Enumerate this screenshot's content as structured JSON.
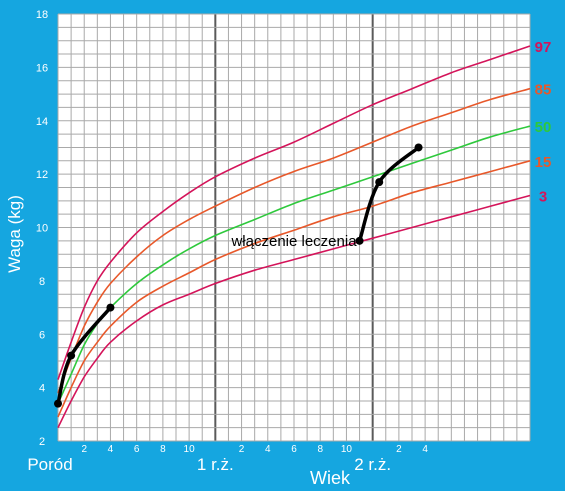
{
  "chart_data": {
    "type": "line",
    "title": "",
    "xlabel": "Wiek",
    "ylabel": "Waga (kg)",
    "x_unit": "months",
    "xlim": [
      0,
      36
    ],
    "ylim": [
      2,
      18
    ],
    "y_ticks": [
      2,
      4,
      6,
      8,
      10,
      12,
      14,
      16,
      18
    ],
    "x_tick_labels": [
      {
        "x": 2,
        "label": "2"
      },
      {
        "x": 4,
        "label": "4"
      },
      {
        "x": 6,
        "label": "6"
      },
      {
        "x": 8,
        "label": "8"
      },
      {
        "x": 10,
        "label": "10"
      },
      {
        "x": 12,
        "label": "1 r.ż."
      },
      {
        "x": 14,
        "label": "2"
      },
      {
        "x": 16,
        "label": "4"
      },
      {
        "x": 18,
        "label": "6"
      },
      {
        "x": 20,
        "label": "8"
      },
      {
        "x": 22,
        "label": "10"
      },
      {
        "x": 24,
        "label": "2 r.ż."
      },
      {
        "x": 26,
        "label": "2"
      },
      {
        "x": 28,
        "label": "4"
      }
    ],
    "origin_label": "Poród",
    "grid": true,
    "percentiles": [
      {
        "name": "97",
        "color": "#d4145a",
        "x": [
          0,
          1,
          2,
          3,
          4,
          6,
          8,
          10,
          12,
          15,
          18,
          21,
          24,
          27,
          30,
          33,
          36
        ],
        "values": [
          4.3,
          5.7,
          7.0,
          8.0,
          8.7,
          9.8,
          10.6,
          11.3,
          11.9,
          12.6,
          13.2,
          13.9,
          14.6,
          15.2,
          15.8,
          16.3,
          16.8
        ]
      },
      {
        "name": "85",
        "color": "#e8582a",
        "x": [
          0,
          1,
          2,
          3,
          4,
          6,
          8,
          10,
          12,
          15,
          18,
          21,
          24,
          27,
          30,
          33,
          36
        ],
        "values": [
          3.8,
          5.1,
          6.3,
          7.2,
          7.9,
          8.9,
          9.7,
          10.3,
          10.8,
          11.5,
          12.1,
          12.6,
          13.2,
          13.8,
          14.3,
          14.8,
          15.2
        ]
      },
      {
        "name": "50",
        "color": "#2ec93c",
        "x": [
          0,
          1,
          2,
          3,
          4,
          6,
          8,
          10,
          12,
          15,
          18,
          21,
          24,
          27,
          30,
          33,
          36
        ],
        "values": [
          3.4,
          4.5,
          5.6,
          6.4,
          7.0,
          7.9,
          8.6,
          9.2,
          9.7,
          10.3,
          10.9,
          11.4,
          11.9,
          12.4,
          12.9,
          13.4,
          13.8
        ]
      },
      {
        "name": "15",
        "color": "#e8582a",
        "x": [
          0,
          1,
          2,
          3,
          4,
          6,
          8,
          10,
          12,
          15,
          18,
          21,
          24,
          27,
          30,
          33,
          36
        ],
        "values": [
          2.9,
          4.0,
          5.0,
          5.7,
          6.3,
          7.2,
          7.8,
          8.3,
          8.8,
          9.4,
          9.9,
          10.4,
          10.8,
          11.3,
          11.7,
          12.1,
          12.5
        ]
      },
      {
        "name": "3",
        "color": "#d4145a",
        "x": [
          0,
          1,
          2,
          3,
          4,
          6,
          8,
          10,
          12,
          15,
          18,
          21,
          24,
          27,
          30,
          33,
          36
        ],
        "values": [
          2.5,
          3.5,
          4.4,
          5.1,
          5.7,
          6.5,
          7.1,
          7.5,
          7.9,
          8.4,
          8.8,
          9.2,
          9.6,
          10.0,
          10.4,
          10.8,
          11.2
        ]
      }
    ],
    "patient": {
      "name": "",
      "color": "#000000",
      "x": [
        0,
        1,
        4,
        23,
        24.5,
        27.5
      ],
      "values": [
        3.4,
        5.2,
        7.0,
        9.5,
        11.7,
        13.0
      ]
    },
    "annotation": {
      "text": "włączenie leczenia",
      "x": 23,
      "y": 9.5
    }
  }
}
